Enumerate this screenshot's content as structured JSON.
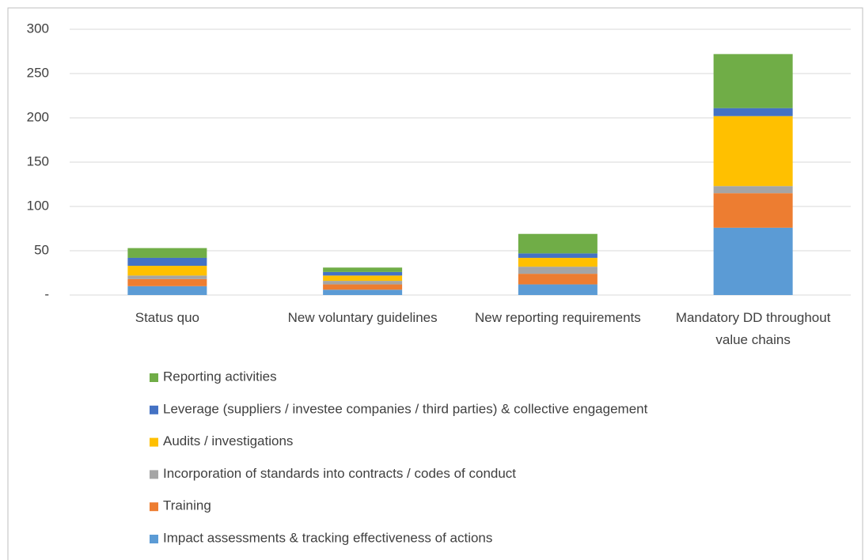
{
  "chart_data": {
    "type": "stacked_bar",
    "categories": [
      "Status quo",
      "New voluntary guidelines",
      "New reporting requirements",
      "Mandatory DD throughout value chains"
    ],
    "series": [
      {
        "name": "Impact assessments & tracking effectiveness of actions",
        "color": "#5b9bd5",
        "values": [
          10,
          6,
          12,
          76
        ]
      },
      {
        "name": "Training",
        "color": "#ed7d31",
        "values": [
          8,
          6,
          12,
          39
        ]
      },
      {
        "name": "Incorporation of standards into contracts / codes of conduct",
        "color": "#a5a5a5",
        "values": [
          4,
          4,
          8,
          8
        ]
      },
      {
        "name": "Audits / investigations",
        "color": "#ffc000",
        "values": [
          11,
          6,
          10,
          79
        ]
      },
      {
        "name": "Leverage (suppliers / investee companies / third parties) & collective engagement",
        "color": "#4472c4",
        "values": [
          9,
          4,
          5,
          9
        ]
      },
      {
        "name": "Reporting activities",
        "color": "#70ad47",
        "values": [
          11,
          5,
          22,
          61
        ]
      }
    ],
    "ylim": [
      0,
      300
    ],
    "yticks": [
      {
        "value": 0,
        "label": "-"
      },
      50,
      100,
      150,
      200,
      250,
      300
    ],
    "grid": true
  }
}
